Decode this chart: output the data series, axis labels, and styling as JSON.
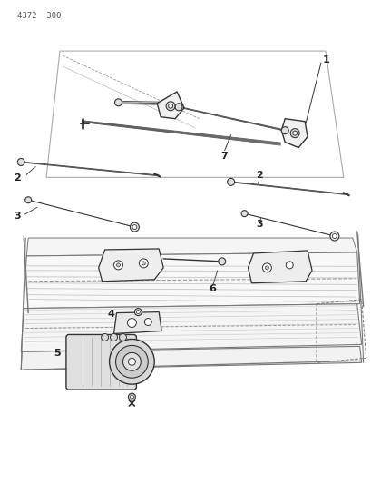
{
  "title": "4372  300",
  "bg_color": "#ffffff",
  "line_color": "#333333",
  "label_color": "#222222",
  "fig_width": 4.1,
  "fig_height": 5.33,
  "dpi": 100
}
